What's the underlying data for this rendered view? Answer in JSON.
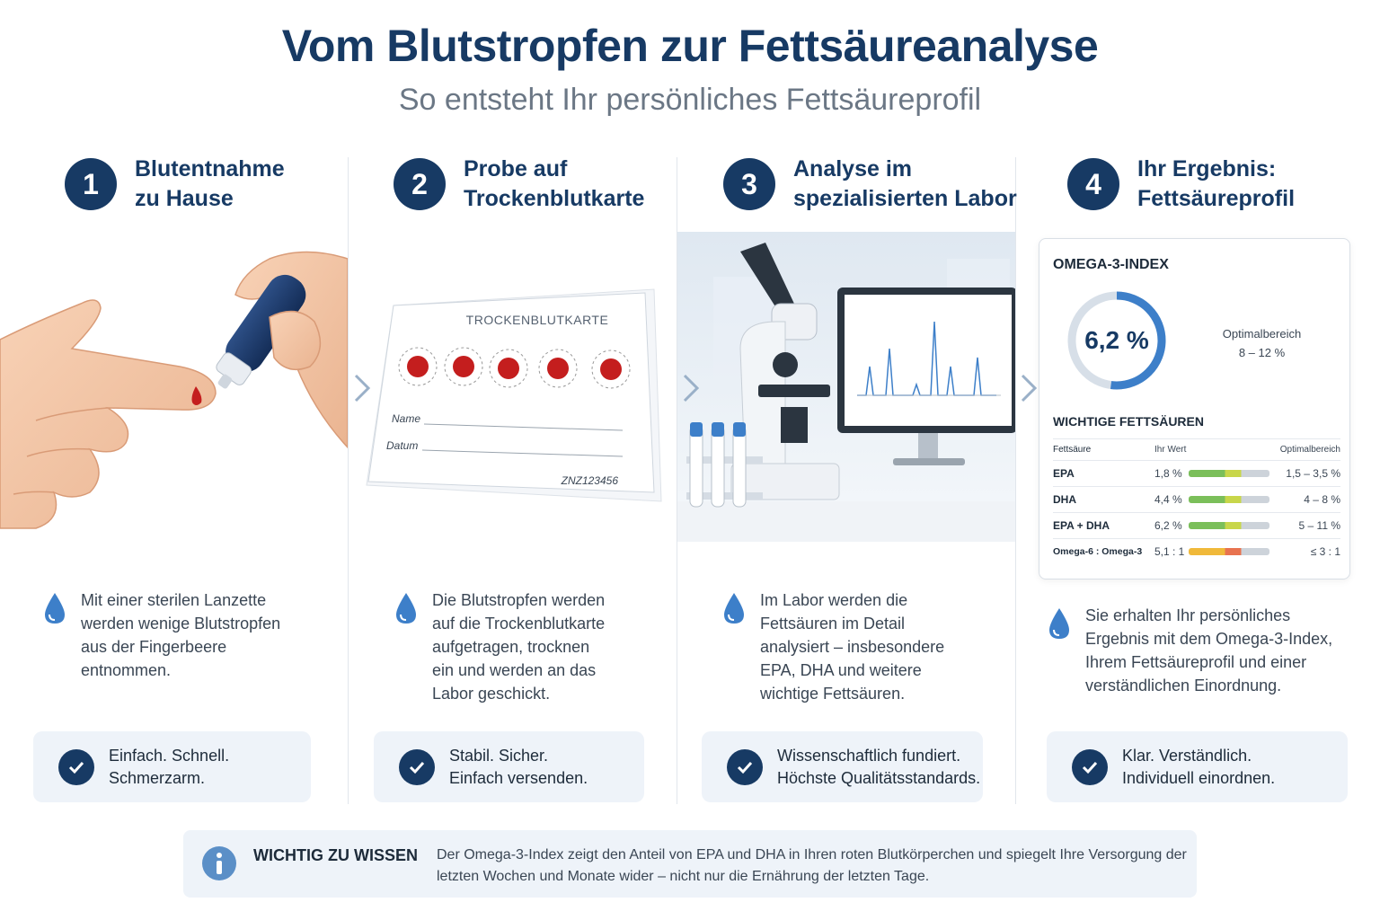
{
  "header": {
    "title": "Vom Blutstropfen zur Fettsäureanalyse",
    "subtitle": "So entsteht Ihr persönliches Fettsäureprofil"
  },
  "steps": [
    {
      "number": "1",
      "title": "Blutentnahme\nzu Hause",
      "description": "Mit einer sterilen Lanzette\nwerden wenige Blutstropfen\naus der Fingerbeere\nentnommen.",
      "benefit": "Einfach. Schnell.\nSchmerzarm."
    },
    {
      "number": "2",
      "title": "Probe auf\nTrockenblutkarte",
      "description": "Die Blutstropfen werden\nauf die Trockenblutkarte\naufgetragen, trocknen\nein und werden an das\nLabor geschickt.",
      "benefit": "Stabil. Sicher.\nEinfach versenden."
    },
    {
      "number": "3",
      "title": "Analyse im\nspezialisierten Labor",
      "description": "Im Labor werden die\nFettsäuren im Detail\nanalysiert – insbesondere\nEPA, DHA und weitere\nwichtige Fettsäuren.",
      "benefit": "Wissenschaftlich fundiert.\nHöchste Qualitätsstandards."
    },
    {
      "number": "4",
      "title": "Ihr Ergebnis:\nFettsäureprofil",
      "description": "Sie erhalten Ihr persönliches\nErgebnis mit dem Omega-3-Index,\nIhrem Fettsäureprofil und einer\nverständlichen Einordnung.",
      "benefit": "Klar. Verständlich.\nIndividuell einordnen."
    }
  ],
  "card_sample": {
    "title": "TROCKENBLUTKARTE",
    "name_label": "Name",
    "date_label": "Datum",
    "id": "ZNZ123456"
  },
  "result_card": {
    "title": "OMEGA-3-INDEX",
    "value": "6,2 %",
    "gauge_fraction": 0.52,
    "optimal_label": "Optimalbereich",
    "optimal_range": "8 – 12 %",
    "section_title": "WICHTIGE FETTSÄUREN",
    "columns": [
      "Fettsäure",
      "Ihr Wert",
      "Optimalbereich"
    ],
    "rows": [
      {
        "name": "EPA",
        "value": "1,8 %",
        "range": "1,5 – 3,5 %",
        "bar": [
          "#7bbf5a",
          "#c8d64a",
          "#cdd3da"
        ]
      },
      {
        "name": "DHA",
        "value": "4,4 %",
        "range": "4 – 8 %",
        "bar": [
          "#7bbf5a",
          "#c8d64a",
          "#cdd3da"
        ]
      },
      {
        "name": "EPA + DHA",
        "value": "6,2 %",
        "range": "5 – 11 %",
        "bar": [
          "#7bbf5a",
          "#c8d64a",
          "#cdd3da"
        ]
      },
      {
        "name": "Omega-6 : Omega-3",
        "value": "5,1 : 1",
        "range": "≤ 3 : 1",
        "bar": [
          "#f0b93a",
          "#e8734f",
          "#cdd3da"
        ]
      }
    ]
  },
  "info": {
    "label": "WICHTIG ZU WISSEN",
    "text": "Der Omega-3-Index zeigt den Anteil von EPA und DHA in Ihren roten Blutkörperchen und spiegelt Ihre Versorgung der letzten Wochen und Monate wider – nicht nur die Ernährung der letzten Tage."
  },
  "colors": {
    "primary": "#173a64",
    "accent": "#3d7fc9",
    "blood": "#c41e1e",
    "panel": "#eef3f9"
  }
}
